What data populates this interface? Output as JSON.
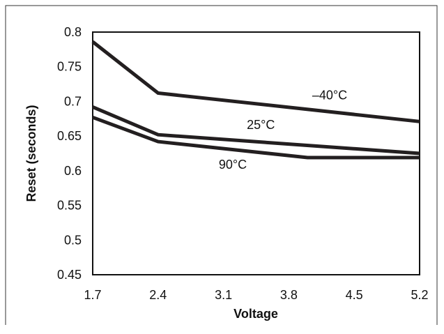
{
  "chart_data": {
    "type": "line",
    "xlabel": "Voltage",
    "ylabel": "Reset (seconds)",
    "xlim": [
      1.7,
      5.2
    ],
    "ylim": [
      0.45,
      0.8
    ],
    "x_ticks": [
      "1.7",
      "2.4",
      "3.1",
      "3.8",
      "4.5",
      "5.2"
    ],
    "y_ticks": [
      "0.8",
      "0.75",
      "0.7",
      "0.65",
      "0.6",
      "0.55",
      "0.5",
      "0.45"
    ],
    "grid": false,
    "legend": "inline labels",
    "series": [
      {
        "name": "–40°C",
        "x": [
          1.7,
          2.4,
          5.2
        ],
        "y": [
          0.786,
          0.712,
          0.671
        ],
        "label_at": [
          4.05,
          0.703
        ]
      },
      {
        "name": "25°C",
        "x": [
          1.7,
          2.4,
          5.2
        ],
        "y": [
          0.692,
          0.652,
          0.625
        ],
        "label_at": [
          3.35,
          0.66
        ]
      },
      {
        "name": "90°C",
        "x": [
          1.7,
          2.4,
          4.0,
          5.2
        ],
        "y": [
          0.677,
          0.642,
          0.619,
          0.619
        ],
        "label_at": [
          3.05,
          0.603
        ]
      }
    ],
    "line_color": "#231f20"
  }
}
